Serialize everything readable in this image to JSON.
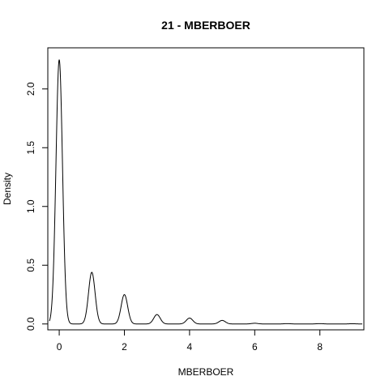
{
  "chart_data": {
    "type": "line",
    "title": "21 - MBERBOER",
    "xlabel": "MBERBOER",
    "ylabel": "Density",
    "xlim": [
      -0.35,
      9.35
    ],
    "ylim": [
      -0.05,
      2.35
    ],
    "x_ticks": [
      0,
      2,
      4,
      6,
      8
    ],
    "x_tick_labels": [
      "0",
      "2",
      "4",
      "6",
      "8"
    ],
    "y_ticks": [
      0.0,
      0.5,
      1.0,
      1.5,
      2.0
    ],
    "y_tick_labels": [
      "0.0",
      "0.5",
      "1.0",
      "1.5",
      "2.0"
    ],
    "x_range": [
      -0.3,
      9.3
    ],
    "peaks": [
      {
        "x": 0,
        "y": 2.25
      },
      {
        "x": 1,
        "y": 0.44
      },
      {
        "x": 2,
        "y": 0.25
      },
      {
        "x": 3,
        "y": 0.08
      },
      {
        "x": 4,
        "y": 0.05
      },
      {
        "x": 5,
        "y": 0.03
      },
      {
        "x": 6,
        "y": 0.006
      },
      {
        "x": 7,
        "y": 0.003
      },
      {
        "x": 8,
        "y": 0.003
      },
      {
        "x": 9,
        "y": 0.002
      }
    ],
    "kernel_sd": 0.1,
    "grid": false,
    "color": "#000000"
  }
}
